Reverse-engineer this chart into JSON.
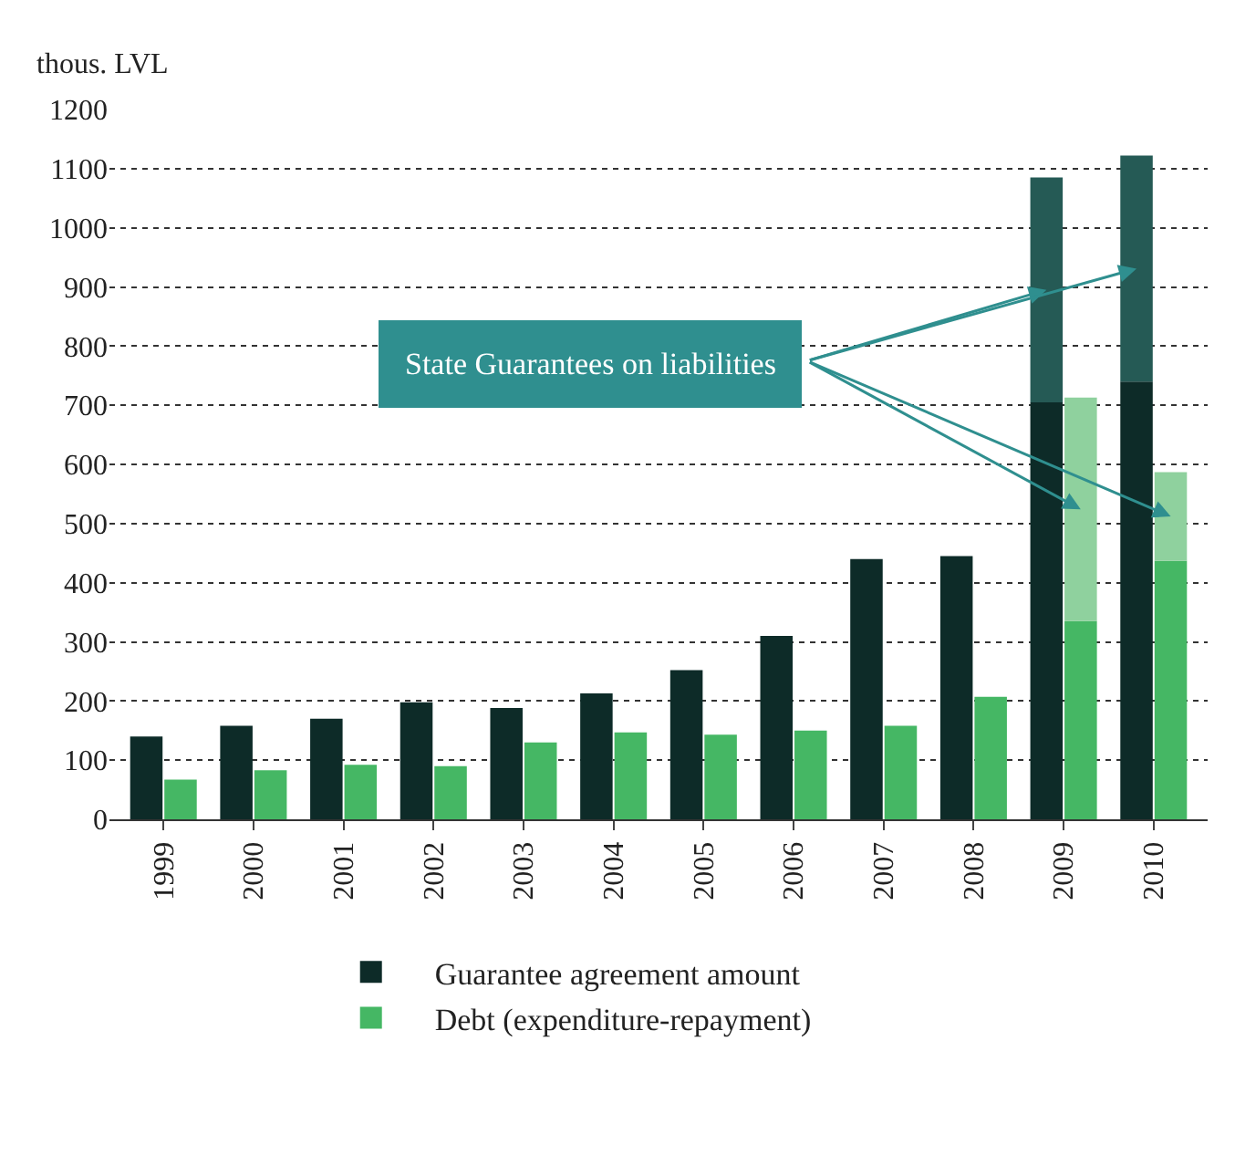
{
  "chart_data": {
    "type": "bar",
    "ylabel": "thous. LVL",
    "categories": [
      "1999",
      "2000",
      "2001",
      "2002",
      "2003",
      "2004",
      "2005",
      "2006",
      "2007",
      "2008",
      "2009",
      "2010"
    ],
    "series": [
      {
        "name": "Guarantee agreement amount",
        "color": "#0d2b28",
        "values": [
          140,
          158,
          170,
          198,
          188,
          213,
          252,
          310,
          440,
          445,
          705,
          740
        ]
      },
      {
        "name": "Debt (expenditure-repayment)",
        "color": "#45b764",
        "values": [
          67,
          83,
          92,
          90,
          130,
          147,
          143,
          150,
          158,
          207,
          335,
          437
        ]
      },
      {
        "color": "#255a55",
        "values": [
          null,
          null,
          null,
          null,
          null,
          null,
          null,
          null,
          null,
          null,
          380,
          382
        ],
        "base": [
          null,
          null,
          null,
          null,
          null,
          null,
          null,
          null,
          null,
          null,
          705,
          740
        ]
      },
      {
        "color": "#8fd19e",
        "values": [
          null,
          null,
          null,
          null,
          null,
          null,
          null,
          null,
          null,
          null,
          378,
          150
        ],
        "base": [
          null,
          null,
          null,
          null,
          null,
          null,
          null,
          null,
          null,
          null,
          335,
          437
        ]
      }
    ],
    "ylim": [
      0,
      1200
    ],
    "yticks": [
      0,
      100,
      200,
      300,
      400,
      500,
      600,
      700,
      800,
      900,
      1000,
      1100,
      1200
    ],
    "grid": "y",
    "legend": "bottom",
    "annotations": [
      "State Guarantees on liabilities"
    ]
  }
}
